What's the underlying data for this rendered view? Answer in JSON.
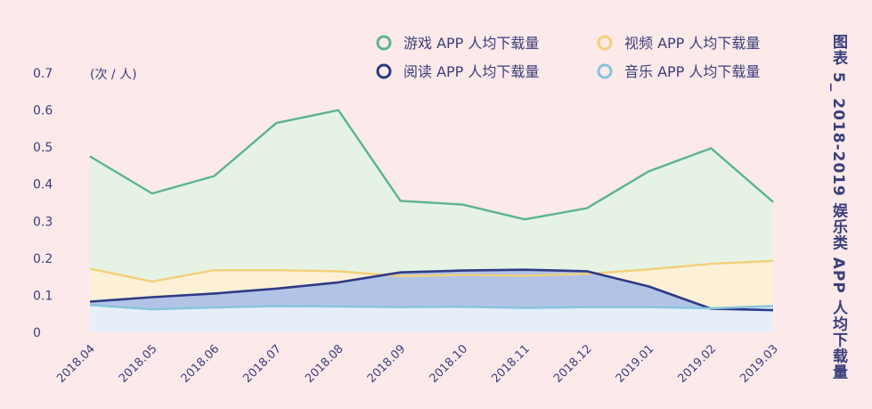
{
  "chart_data": {
    "type": "area",
    "title": "图表 5_ 2018-2019 娱乐类 APP 人均下载量",
    "unit_label": "(次 / 人)",
    "categories": [
      "2018.04",
      "2018.05",
      "2018.06",
      "2018.07",
      "2018.08",
      "2018.09",
      "2018.10",
      "2018.11",
      "2018.12",
      "2019.01",
      "2019.02",
      "2019.03"
    ],
    "y_ticks": [
      "0",
      "0.1",
      "0.2",
      "0.3",
      "0.4",
      "0.5",
      "0.6",
      "0.7"
    ],
    "ylim": [
      0,
      0.7
    ],
    "grid": false,
    "legend_position": "top-right",
    "series": [
      {
        "key": "game",
        "name": "游戏 APP 人均下载量",
        "line": "#5bb58a",
        "fill": "#e6f3e4",
        "values": [
          0.475,
          0.375,
          0.422,
          0.565,
          0.6,
          0.355,
          0.345,
          0.305,
          0.335,
          0.435,
          0.497,
          0.352
        ]
      },
      {
        "key": "video",
        "name": "视频 APP 人均下载量",
        "line": "#f2cf7a",
        "fill": "#fcf0d6",
        "values": [
          0.172,
          0.137,
          0.168,
          0.168,
          0.165,
          0.152,
          0.155,
          0.153,
          0.158,
          0.17,
          0.185,
          0.193
        ]
      },
      {
        "key": "reading",
        "name": "阅读 APP 人均下载量",
        "line": "#2e3a86",
        "fill": "#b2c4e6",
        "values": [
          0.083,
          0.095,
          0.105,
          0.118,
          0.135,
          0.162,
          0.167,
          0.169,
          0.165,
          0.124,
          0.064,
          0.06
        ]
      },
      {
        "key": "music",
        "name": "音乐 APP 人均下载量",
        "line": "#86c5dc",
        "fill": "#e6eef8",
        "values": [
          0.074,
          0.062,
          0.067,
          0.071,
          0.07,
          0.068,
          0.069,
          0.066,
          0.068,
          0.068,
          0.065,
          0.071
        ]
      }
    ]
  }
}
